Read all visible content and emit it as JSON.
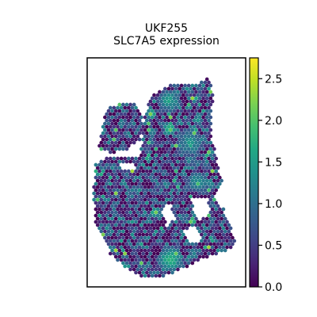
{
  "chart_data": {
    "type": "heatmap",
    "subtype": "spatial-hexbin-scatter",
    "title_line1": "UKF255",
    "title_line2": "SLC7A5 expression",
    "xlabel": "",
    "ylabel": "",
    "grid": false,
    "legend": "colorbar-right",
    "colormap": "viridis",
    "color_range": [
      0.0,
      2.75
    ],
    "colorbar_ticks": [
      0.0,
      0.5,
      1.0,
      1.5,
      2.0,
      2.5
    ],
    "colorbar_tick_labels": [
      "0.0",
      "0.5",
      "1.0",
      "1.5",
      "2.0",
      "2.5"
    ],
    "hotspots": [
      {
        "location": "upper-left lobe top",
        "approx_value": 2.4
      },
      {
        "location": "upper-right lobe center",
        "approx_value": 2.2
      },
      {
        "location": "center",
        "approx_value": 2.3
      },
      {
        "location": "bottom center",
        "approx_value": 2.0
      }
    ]
  }
}
